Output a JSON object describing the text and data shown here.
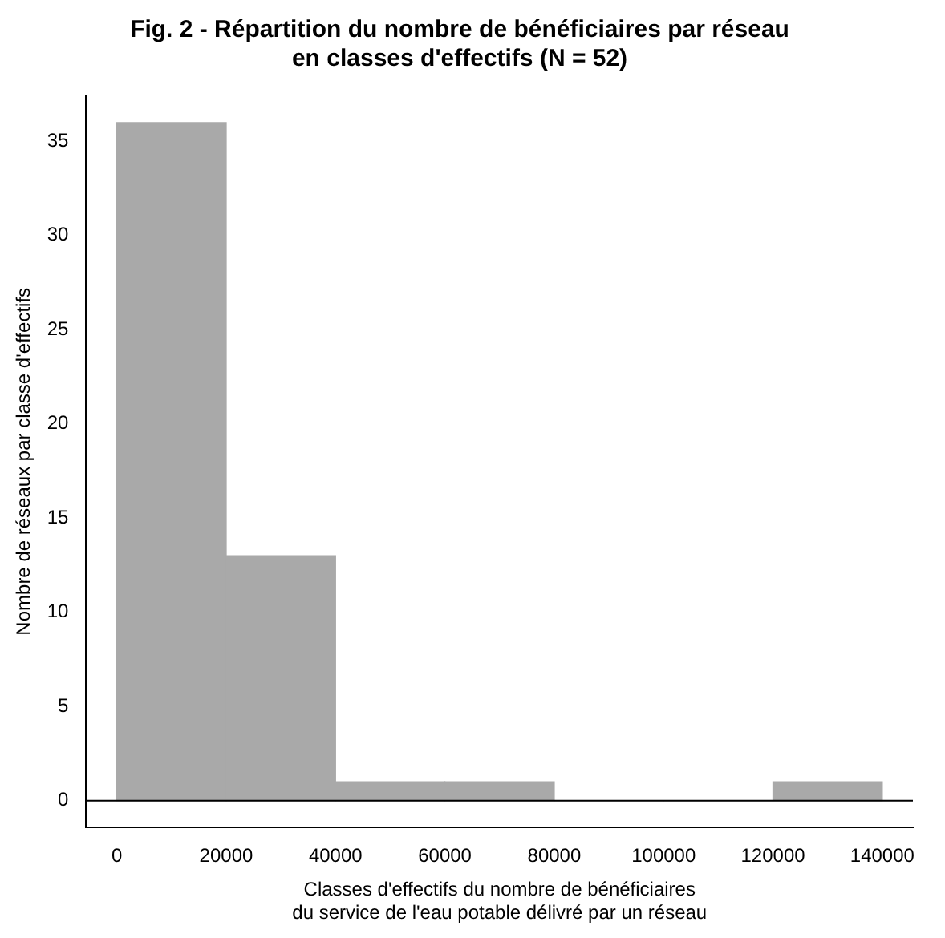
{
  "chart_data": {
    "type": "histogram",
    "title": "Fig. 2 - Répartition du nombre de bénéficiaires par réseau\nen classes d'effectifs (N = 52)",
    "xlabel": "Classes d'effectifs du nombre de bénéficiaires\ndu service de l'eau potable délivré par un réseau",
    "ylabel": "Nombre de réseaux par classe d'effectifs",
    "bins": [
      0,
      20000,
      40000,
      60000,
      80000,
      100000,
      120000,
      140000
    ],
    "values": [
      36,
      13,
      1,
      1,
      0,
      0,
      1
    ],
    "color": "#a9a9a9",
    "xlim": [
      -5600,
      145600
    ],
    "xticks": [
      0,
      20000,
      40000,
      60000,
      80000,
      100000,
      120000,
      140000
    ],
    "ylim": [
      -1.4,
      37.4
    ],
    "yticks": [
      0,
      5,
      10,
      15,
      20,
      25,
      30,
      35
    ],
    "ref_lines": [
      {
        "axis": "y",
        "value": 0,
        "color": "#000000"
      }
    ],
    "grid": false,
    "legend": false
  }
}
